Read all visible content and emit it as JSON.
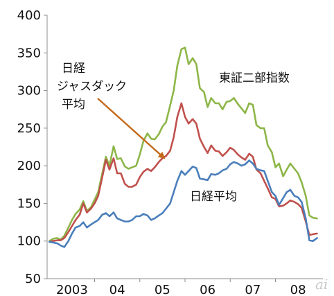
{
  "chart_data": {
    "type": "line",
    "title": "",
    "xlabel": "",
    "ylabel": "",
    "ylim": [
      50,
      400
    ],
    "yticks": [
      50,
      100,
      150,
      200,
      250,
      300,
      350,
      400
    ],
    "xticks": [
      {
        "label": "2003",
        "x": 2003.5
      },
      {
        "label": "04",
        "x": 2004.5
      },
      {
        "label": "05",
        "x": 2005.5
      },
      {
        "label": "06",
        "x": 2006.5
      },
      {
        "label": "07",
        "x": 2007.5
      },
      {
        "label": "08",
        "x": 2008.5
      }
    ],
    "xlim": [
      2002.95,
      2009.05
    ],
    "grid": false,
    "colors": {
      "tse2": "#8db648",
      "jasdaq": "#c0504d",
      "nikkei": "#4a7ebb",
      "arrow": "#c46a1a"
    },
    "series": [
      {
        "name": "東証二部指数",
        "color": "#8db648",
        "points": [
          [
            2003.0,
            100
          ],
          [
            2003.08,
            103
          ],
          [
            2003.17,
            104
          ],
          [
            2003.25,
            102
          ],
          [
            2003.33,
            107
          ],
          [
            2003.42,
            118
          ],
          [
            2003.5,
            128
          ],
          [
            2003.58,
            136
          ],
          [
            2003.67,
            142
          ],
          [
            2003.75,
            153
          ],
          [
            2003.83,
            140
          ],
          [
            2003.92,
            145
          ],
          [
            2004.0,
            155
          ],
          [
            2004.08,
            165
          ],
          [
            2004.17,
            190
          ],
          [
            2004.25,
            212
          ],
          [
            2004.33,
            200
          ],
          [
            2004.42,
            226
          ],
          [
            2004.5,
            209
          ],
          [
            2004.58,
            210
          ],
          [
            2004.67,
            199
          ],
          [
            2004.75,
            196
          ],
          [
            2004.83,
            198
          ],
          [
            2004.92,
            200
          ],
          [
            2005.0,
            215
          ],
          [
            2005.08,
            233
          ],
          [
            2005.17,
            243
          ],
          [
            2005.25,
            236
          ],
          [
            2005.33,
            235
          ],
          [
            2005.42,
            242
          ],
          [
            2005.5,
            252
          ],
          [
            2005.58,
            258
          ],
          [
            2005.67,
            280
          ],
          [
            2005.75,
            300
          ],
          [
            2005.83,
            333
          ],
          [
            2005.92,
            355
          ],
          [
            2006.0,
            357
          ],
          [
            2006.08,
            335
          ],
          [
            2006.17,
            343
          ],
          [
            2006.25,
            335
          ],
          [
            2006.33,
            303
          ],
          [
            2006.42,
            298
          ],
          [
            2006.5,
            278
          ],
          [
            2006.58,
            290
          ],
          [
            2006.67,
            283
          ],
          [
            2006.75,
            283
          ],
          [
            2006.83,
            275
          ],
          [
            2006.92,
            285
          ],
          [
            2007.0,
            286
          ],
          [
            2007.08,
            290
          ],
          [
            2007.17,
            282
          ],
          [
            2007.25,
            276
          ],
          [
            2007.33,
            270
          ],
          [
            2007.42,
            283
          ],
          [
            2007.5,
            281
          ],
          [
            2007.58,
            254
          ],
          [
            2007.67,
            250
          ],
          [
            2007.75,
            250
          ],
          [
            2007.83,
            227
          ],
          [
            2007.92,
            218
          ],
          [
            2008.0,
            198
          ],
          [
            2008.08,
            203
          ],
          [
            2008.17,
            186
          ],
          [
            2008.25,
            195
          ],
          [
            2008.33,
            203
          ],
          [
            2008.42,
            196
          ],
          [
            2008.5,
            190
          ],
          [
            2008.58,
            178
          ],
          [
            2008.67,
            160
          ],
          [
            2008.75,
            134
          ],
          [
            2008.83,
            131
          ],
          [
            2008.92,
            130
          ]
        ]
      },
      {
        "name": "日経ジャスダック平均",
        "color": "#c0504d",
        "points": [
          [
            2003.0,
            99
          ],
          [
            2003.08,
            100
          ],
          [
            2003.17,
            101
          ],
          [
            2003.25,
            101
          ],
          [
            2003.33,
            104
          ],
          [
            2003.42,
            112
          ],
          [
            2003.5,
            120
          ],
          [
            2003.58,
            128
          ],
          [
            2003.67,
            135
          ],
          [
            2003.75,
            150
          ],
          [
            2003.83,
            138
          ],
          [
            2003.92,
            143
          ],
          [
            2004.0,
            150
          ],
          [
            2004.08,
            160
          ],
          [
            2004.17,
            185
          ],
          [
            2004.25,
            208
          ],
          [
            2004.33,
            195
          ],
          [
            2004.42,
            210
          ],
          [
            2004.5,
            190
          ],
          [
            2004.58,
            190
          ],
          [
            2004.67,
            176
          ],
          [
            2004.75,
            172
          ],
          [
            2004.83,
            172
          ],
          [
            2004.92,
            175
          ],
          [
            2005.0,
            185
          ],
          [
            2005.08,
            192
          ],
          [
            2005.17,
            196
          ],
          [
            2005.25,
            193
          ],
          [
            2005.33,
            198
          ],
          [
            2005.42,
            205
          ],
          [
            2005.5,
            210
          ],
          [
            2005.58,
            213
          ],
          [
            2005.67,
            220
          ],
          [
            2005.75,
            238
          ],
          [
            2005.83,
            265
          ],
          [
            2005.92,
            283
          ],
          [
            2006.0,
            265
          ],
          [
            2006.08,
            256
          ],
          [
            2006.17,
            262
          ],
          [
            2006.25,
            256
          ],
          [
            2006.33,
            236
          ],
          [
            2006.42,
            225
          ],
          [
            2006.5,
            217
          ],
          [
            2006.58,
            227
          ],
          [
            2006.67,
            220
          ],
          [
            2006.75,
            219
          ],
          [
            2006.83,
            213
          ],
          [
            2006.92,
            218
          ],
          [
            2007.0,
            224
          ],
          [
            2007.08,
            221
          ],
          [
            2007.17,
            215
          ],
          [
            2007.25,
            211
          ],
          [
            2007.33,
            208
          ],
          [
            2007.42,
            216
          ],
          [
            2007.5,
            212
          ],
          [
            2007.58,
            195
          ],
          [
            2007.67,
            190
          ],
          [
            2007.75,
            180
          ],
          [
            2007.83,
            170
          ],
          [
            2007.92,
            158
          ],
          [
            2008.0,
            156
          ],
          [
            2008.08,
            146
          ],
          [
            2008.17,
            147
          ],
          [
            2008.25,
            150
          ],
          [
            2008.33,
            154
          ],
          [
            2008.42,
            152
          ],
          [
            2008.5,
            149
          ],
          [
            2008.58,
            144
          ],
          [
            2008.67,
            126
          ],
          [
            2008.75,
            108
          ],
          [
            2008.83,
            109
          ],
          [
            2008.92,
            110
          ]
        ]
      },
      {
        "name": "日経平均",
        "color": "#4a7ebb",
        "points": [
          [
            2003.0,
            99
          ],
          [
            2003.08,
            98
          ],
          [
            2003.17,
            97
          ],
          [
            2003.25,
            94
          ],
          [
            2003.33,
            92
          ],
          [
            2003.42,
            100
          ],
          [
            2003.5,
            110
          ],
          [
            2003.58,
            118
          ],
          [
            2003.67,
            120
          ],
          [
            2003.75,
            125
          ],
          [
            2003.83,
            118
          ],
          [
            2003.92,
            122
          ],
          [
            2004.0,
            125
          ],
          [
            2004.08,
            128
          ],
          [
            2004.17,
            135
          ],
          [
            2004.25,
            137
          ],
          [
            2004.33,
            133
          ],
          [
            2004.42,
            138
          ],
          [
            2004.5,
            130
          ],
          [
            2004.58,
            128
          ],
          [
            2004.67,
            126
          ],
          [
            2004.75,
            126
          ],
          [
            2004.83,
            128
          ],
          [
            2004.92,
            133
          ],
          [
            2005.0,
            133
          ],
          [
            2005.08,
            136
          ],
          [
            2005.17,
            134
          ],
          [
            2005.25,
            128
          ],
          [
            2005.33,
            130
          ],
          [
            2005.42,
            134
          ],
          [
            2005.5,
            137
          ],
          [
            2005.58,
            143
          ],
          [
            2005.67,
            150
          ],
          [
            2005.75,
            165
          ],
          [
            2005.83,
            180
          ],
          [
            2005.92,
            193
          ],
          [
            2006.0,
            188
          ],
          [
            2006.08,
            193
          ],
          [
            2006.17,
            199
          ],
          [
            2006.25,
            197
          ],
          [
            2006.33,
            183
          ],
          [
            2006.42,
            182
          ],
          [
            2006.5,
            181
          ],
          [
            2006.58,
            189
          ],
          [
            2006.67,
            188
          ],
          [
            2006.75,
            190
          ],
          [
            2006.83,
            194
          ],
          [
            2006.92,
            196
          ],
          [
            2007.0,
            202
          ],
          [
            2007.08,
            205
          ],
          [
            2007.17,
            203
          ],
          [
            2007.25,
            200
          ],
          [
            2007.33,
            202
          ],
          [
            2007.42,
            207
          ],
          [
            2007.5,
            203
          ],
          [
            2007.58,
            196
          ],
          [
            2007.67,
            194
          ],
          [
            2007.75,
            193
          ],
          [
            2007.83,
            180
          ],
          [
            2007.92,
            165
          ],
          [
            2008.0,
            160
          ],
          [
            2008.08,
            148
          ],
          [
            2008.17,
            157
          ],
          [
            2008.25,
            165
          ],
          [
            2008.33,
            168
          ],
          [
            2008.42,
            160
          ],
          [
            2008.5,
            158
          ],
          [
            2008.58,
            152
          ],
          [
            2008.67,
            130
          ],
          [
            2008.75,
            101
          ],
          [
            2008.83,
            100
          ],
          [
            2008.92,
            104
          ]
        ]
      }
    ],
    "annotations": [
      {
        "key": "jasdaq",
        "lines": [
          "日経",
          "ジャスダック",
          "平均"
        ]
      },
      {
        "key": "tse2",
        "lines": [
          "東証二部指数"
        ]
      },
      {
        "key": "nikkei",
        "lines": [
          "日経平均"
        ]
      }
    ],
    "watermark": "ai"
  }
}
